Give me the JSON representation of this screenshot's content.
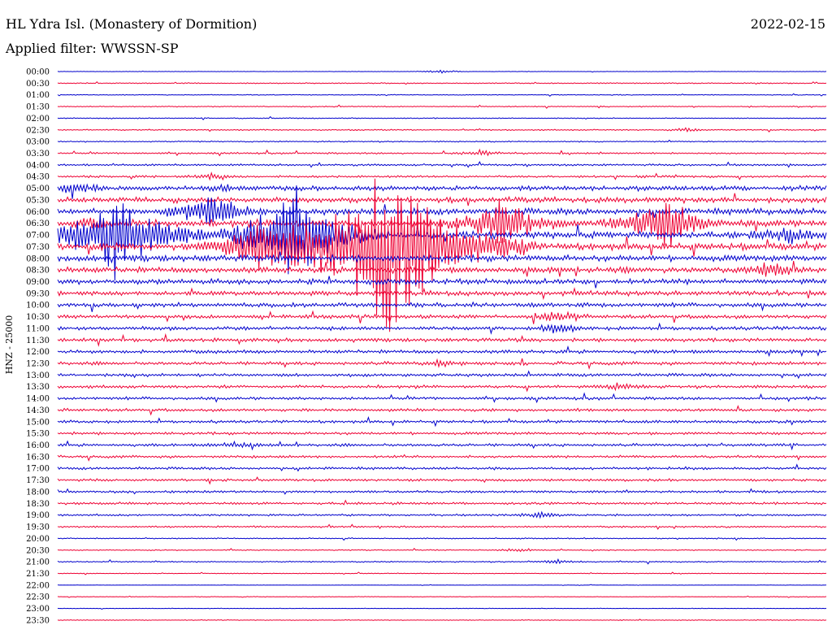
{
  "header": {
    "station": "HL Ydra Isl. (Monastery of Dormition)",
    "filter": "Applied filter: WWSSN-SP",
    "date": "2022-02-15"
  },
  "chart_data": {
    "type": "helicorder",
    "channel_label": "HNZ - 25000",
    "trace_colors": [
      "#0000cc",
      "#ee0033"
    ],
    "rows": [
      "00:00",
      "00:30",
      "01:00",
      "01:30",
      "02:00",
      "02:30",
      "03:00",
      "03:30",
      "04:00",
      "04:30",
      "05:00",
      "05:30",
      "06:00",
      "06:30",
      "07:00",
      "07:30",
      "08:00",
      "08:30",
      "09:00",
      "09:30",
      "10:00",
      "10:30",
      "11:00",
      "11:30",
      "12:00",
      "12:30",
      "13:00",
      "13:30",
      "14:00",
      "14:30",
      "15:00",
      "15:30",
      "16:00",
      "16:30",
      "17:00",
      "17:30",
      "18:00",
      "18:30",
      "19:00",
      "19:30",
      "20:00",
      "20:30",
      "21:00",
      "21:30",
      "22:00",
      "22:30",
      "23:00",
      "23:30"
    ],
    "noise_level": [
      0.2,
      0.5,
      0.4,
      0.5,
      0.5,
      0.6,
      0.6,
      0.9,
      1.0,
      1.1,
      2.5,
      2.8,
      3.2,
      3.5,
      3.5,
      3.4,
      3.2,
      3.0,
      2.7,
      2.4,
      2.2,
      2.0,
      1.9,
      1.8,
      1.8,
      1.7,
      1.6,
      1.5,
      1.5,
      1.5,
      1.4,
      1.4,
      1.4,
      1.3,
      1.3,
      1.3,
      1.2,
      1.2,
      1.0,
      0.9,
      0.6,
      0.5,
      0.6,
      0.4,
      0.2,
      0.3,
      0.3,
      0.4
    ],
    "events": [
      {
        "row": 0,
        "x": 0.5,
        "amp": 3
      },
      {
        "row": 5,
        "x": 0.82,
        "amp": 3
      },
      {
        "row": 7,
        "x": 0.55,
        "amp": 4
      },
      {
        "row": 9,
        "x": 0.2,
        "amp": 4
      },
      {
        "row": 10,
        "x": 0.02,
        "amp": 10
      },
      {
        "row": 10,
        "x": 0.22,
        "amp": 5
      },
      {
        "row": 12,
        "x": 0.2,
        "amp": 30
      },
      {
        "row": 13,
        "x": 0.05,
        "amp": 8
      },
      {
        "row": 13,
        "x": 0.58,
        "amp": 40
      },
      {
        "row": 13,
        "x": 0.79,
        "amp": 40
      },
      {
        "row": 14,
        "x": 0.08,
        "amp": 70
      },
      {
        "row": 14,
        "x": 0.31,
        "amp": 70
      },
      {
        "row": 14,
        "x": 0.95,
        "amp": 14
      },
      {
        "row": 15,
        "x": 0.26,
        "amp": 40
      },
      {
        "row": 15,
        "x": 0.43,
        "amp": 130
      },
      {
        "row": 17,
        "x": 0.93,
        "amp": 12
      },
      {
        "row": 21,
        "x": 0.65,
        "amp": 8
      },
      {
        "row": 22,
        "x": 0.65,
        "amp": 8
      },
      {
        "row": 25,
        "x": 0.5,
        "amp": 5
      },
      {
        "row": 27,
        "x": 0.73,
        "amp": 6
      },
      {
        "row": 32,
        "x": 0.23,
        "amp": 4
      },
      {
        "row": 38,
        "x": 0.63,
        "amp": 4
      },
      {
        "row": 41,
        "x": 0.6,
        "amp": 3
      },
      {
        "row": 42,
        "x": 0.65,
        "amp": 3
      }
    ]
  }
}
